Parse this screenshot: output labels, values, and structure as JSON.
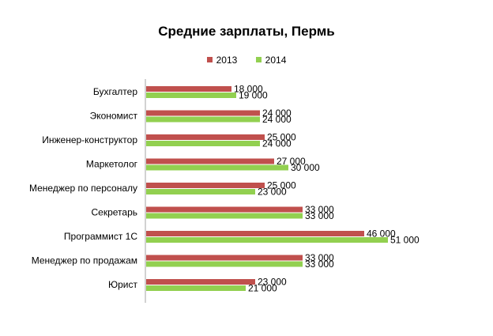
{
  "chart_data": {
    "type": "bar",
    "orientation": "horizontal",
    "title": "Средние зарплаты, Пермь",
    "categories": [
      "Бухгалтер",
      "Экономист",
      "Инженер-конструктор",
      "Маркетолог",
      "Менеджер по персоналу",
      "Секретарь",
      "Программист 1С",
      "Менеджер по продажам",
      "Юрист"
    ],
    "series": [
      {
        "name": "2013",
        "color": "#c0504d",
        "values": [
          18000,
          24000,
          25000,
          27000,
          25000,
          33000,
          46000,
          33000,
          23000
        ],
        "labels": [
          "18 000",
          "24 000",
          "25 000",
          "27 000",
          "25 000",
          "33 000",
          "46 000",
          "33 000",
          "23 000"
        ]
      },
      {
        "name": "2014",
        "color": "#92d050",
        "values": [
          19000,
          24000,
          24000,
          30000,
          23000,
          33000,
          51000,
          33000,
          21000
        ],
        "labels": [
          "19 000",
          "24 000",
          "24 000",
          "30 000",
          "23 000",
          "33 000",
          "51 000",
          "33 000",
          "21 000"
        ]
      }
    ],
    "xlim": [
      0,
      70000
    ],
    "grid": false,
    "legend": "top"
  }
}
